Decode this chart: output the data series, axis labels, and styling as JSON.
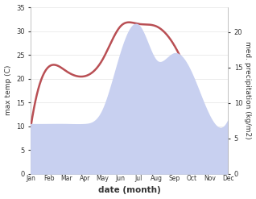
{
  "months": [
    "Jan",
    "Feb",
    "Mar",
    "Apr",
    "May",
    "Jun",
    "Jul",
    "Aug",
    "Sep",
    "Oct",
    "Nov",
    "Dec"
  ],
  "max_temp": [
    10,
    22.5,
    21.5,
    20.5,
    24,
    31,
    31.5,
    31,
    27,
    19,
    11,
    10
  ],
  "precipitation": [
    7,
    7,
    7,
    7,
    9,
    17,
    21,
    16,
    17,
    14,
    8,
    7.5
  ],
  "temp_ylim": [
    0,
    35
  ],
  "precip_ylim": [
    0,
    23.5
  ],
  "temp_color": "#b94f54",
  "precip_fill_color": "#c8d0f0",
  "xlabel": "date (month)",
  "ylabel_left": "max temp (C)",
  "ylabel_right": "med. precipitation (kg/m2)",
  "bg_color": "#ffffff",
  "yticks_left": [
    0,
    5,
    10,
    15,
    20,
    25,
    30,
    35
  ],
  "yticks_right": [
    0,
    5,
    10,
    15,
    20
  ],
  "temp_lw": 1.8
}
